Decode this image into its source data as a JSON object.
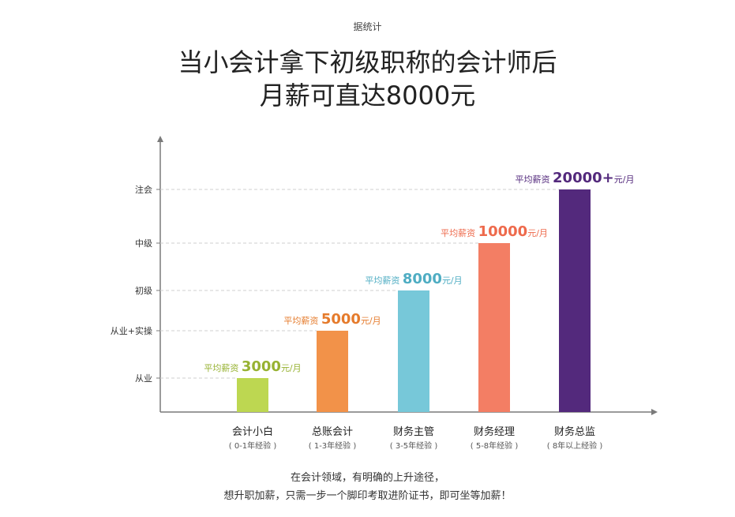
{
  "header": {
    "top_label": "据统计",
    "title_line1": "当小会计拿下初级职称的会计师后",
    "title_line2": "月薪可直达8000元"
  },
  "chart_data": {
    "type": "bar",
    "y_levels": [
      "从业",
      "从业+实操",
      "初级",
      "中级",
      "注会"
    ],
    "categories": [
      {
        "name": "会计小白",
        "experience": "( 0-1年经验 )"
      },
      {
        "name": "总账会计",
        "experience": "( 1-3年经验 )"
      },
      {
        "name": "财务主管",
        "experience": "( 3-5年经验 )"
      },
      {
        "name": "财务经理",
        "experience": "( 5-8年经验 )"
      },
      {
        "name": "财务总监",
        "experience": "( 8年以上经验 )"
      }
    ],
    "values": [
      3000,
      5000,
      8000,
      10000,
      20000
    ],
    "level_of_bar": [
      "从业",
      "从业+实操",
      "初级",
      "中级",
      "注会"
    ],
    "salary_labels": [
      {
        "prefix": "平均薪资",
        "amount": "3000",
        "suffix": "元/月"
      },
      {
        "prefix": "平均薪资",
        "amount": "5000",
        "suffix": "元/月"
      },
      {
        "prefix": "平均薪资",
        "amount": "8000",
        "suffix": "元/月"
      },
      {
        "prefix": "平均薪资",
        "amount": "10000",
        "suffix": "元/月"
      },
      {
        "prefix": "平均薪资",
        "amount": "20000+",
        "suffix": "元/月"
      }
    ],
    "colors": [
      "#BDD751",
      "#F29249",
      "#77C8D9",
      "#F37E64",
      "#53297C"
    ],
    "label_colors": [
      "#97B232",
      "#E57B2C",
      "#4FADC3",
      "#EE6A4C",
      "#53297C"
    ],
    "grid": "dashed"
  },
  "footer": {
    "line1": "在会计领域，有明确的上升途径，",
    "line2": "想升职加薪，只需一步一个脚印考取进阶证书，即可坐等加薪！"
  }
}
